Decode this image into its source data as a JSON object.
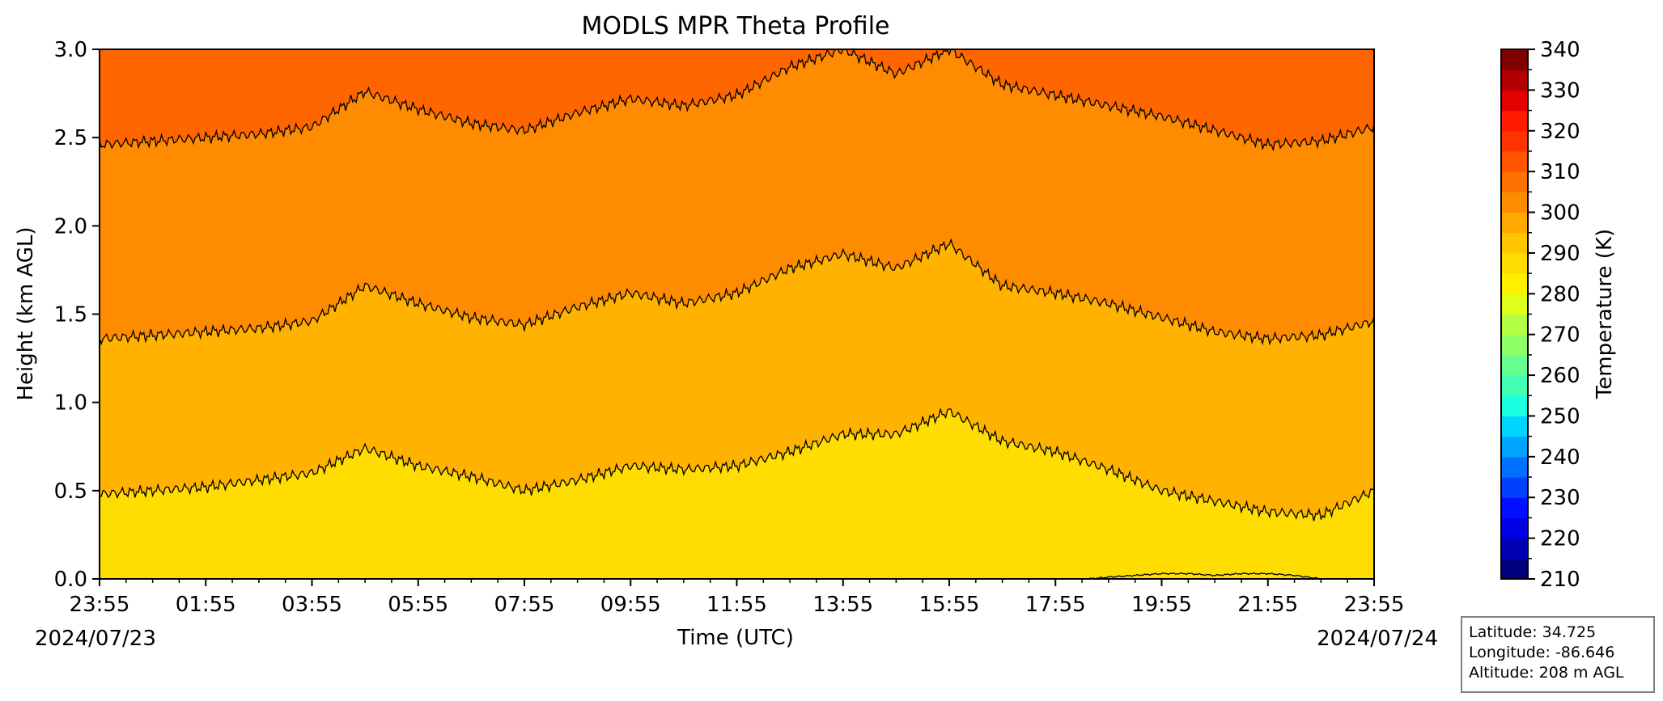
{
  "chart_data": {
    "type": "heatmap",
    "title": "MODLS MPR Theta Profile",
    "xlabel": "Time (UTC)",
    "ylabel": "Height (km AGL)",
    "x_tick_labels": [
      "23:55",
      "01:55",
      "03:55",
      "05:55",
      "07:55",
      "09:55",
      "11:55",
      "13:55",
      "15:55",
      "17:55",
      "19:55",
      "21:55",
      "23:55"
    ],
    "x_start_date": "2024/07/23",
    "x_end_date": "2024/07/24",
    "xlim_hours": [
      0,
      24
    ],
    "ylim": [
      0,
      3.0
    ],
    "y_ticks": [
      "0.0",
      "0.5",
      "1.0",
      "1.5",
      "2.0",
      "2.5",
      "3.0"
    ],
    "contours": [
      {
        "level_K": 300,
        "times_h": [
          0,
          1,
          2,
          3,
          4,
          5,
          6,
          7,
          8,
          9,
          10,
          11,
          12,
          13,
          14,
          15,
          16,
          17,
          18,
          19,
          20,
          21,
          22,
          23,
          24
        ],
        "heights_km": [
          0.48,
          0.5,
          0.52,
          0.56,
          0.6,
          0.74,
          0.64,
          0.58,
          0.5,
          0.56,
          0.64,
          0.62,
          0.64,
          0.72,
          0.82,
          0.82,
          0.95,
          0.78,
          0.72,
          0.62,
          0.5,
          0.44,
          0.38,
          0.36,
          0.5
        ]
      },
      {
        "level_K": 305,
        "times_h": [
          0,
          1,
          2,
          3,
          4,
          5,
          6,
          7,
          8,
          9,
          10,
          11,
          12,
          13,
          14,
          15,
          16,
          17,
          18,
          19,
          20,
          21,
          22,
          23,
          24
        ],
        "heights_km": [
          1.36,
          1.38,
          1.4,
          1.42,
          1.46,
          1.66,
          1.56,
          1.48,
          1.44,
          1.54,
          1.62,
          1.56,
          1.62,
          1.76,
          1.84,
          1.76,
          1.9,
          1.66,
          1.62,
          1.56,
          1.48,
          1.4,
          1.36,
          1.38,
          1.46
        ]
      },
      {
        "level_K": 310,
        "times_h": [
          0,
          1,
          2,
          3,
          4,
          5,
          6,
          7,
          8,
          9,
          10,
          11,
          12,
          13,
          14,
          15,
          16,
          17,
          18,
          19,
          20,
          21,
          22,
          23,
          24
        ],
        "heights_km": [
          2.46,
          2.48,
          2.5,
          2.52,
          2.56,
          2.76,
          2.66,
          2.58,
          2.54,
          2.64,
          2.72,
          2.68,
          2.74,
          2.9,
          3.0,
          2.86,
          3.0,
          2.8,
          2.74,
          2.68,
          2.62,
          2.54,
          2.46,
          2.48,
          2.56
        ]
      },
      {
        "level_K": 295,
        "times_h": [
          18.6,
          19.0,
          19.5,
          20.0,
          20.5,
          21.0,
          21.5,
          22.0,
          22.5,
          23.0
        ],
        "heights_km": [
          0.0,
          0.01,
          0.02,
          0.03,
          0.03,
          0.02,
          0.03,
          0.03,
          0.02,
          0.0
        ]
      }
    ],
    "fill_colors": {
      "below_300": "#ffdd00",
      "300_305": "#ffb300",
      "305_310": "#ff8c00",
      "above_310": "#ff6600"
    },
    "colorbar": {
      "label": "Temperature (K)",
      "ticks": [
        210,
        220,
        230,
        240,
        250,
        260,
        270,
        280,
        290,
        300,
        310,
        320,
        330,
        340
      ],
      "range": [
        210,
        340
      ],
      "step": 5,
      "colors": [
        "#00007f",
        "#0000b2",
        "#0000e5",
        "#0010ff",
        "#0040ff",
        "#0070ff",
        "#00a4ff",
        "#00d4ff",
        "#1affe0",
        "#43ffb4",
        "#67ff8f",
        "#8fff67",
        "#b4ff43",
        "#e0ff1a",
        "#fff000",
        "#ffdd00",
        "#ffc400",
        "#ffa800",
        "#ff8c00",
        "#ff7100",
        "#ff5500",
        "#ff3300",
        "#ff1a00",
        "#e50000",
        "#b20000",
        "#800000"
      ]
    }
  },
  "info": {
    "latitude": "Latitude: 34.725",
    "longitude": "Longitude: -86.646",
    "altitude": "Altitude: 208 m AGL"
  }
}
